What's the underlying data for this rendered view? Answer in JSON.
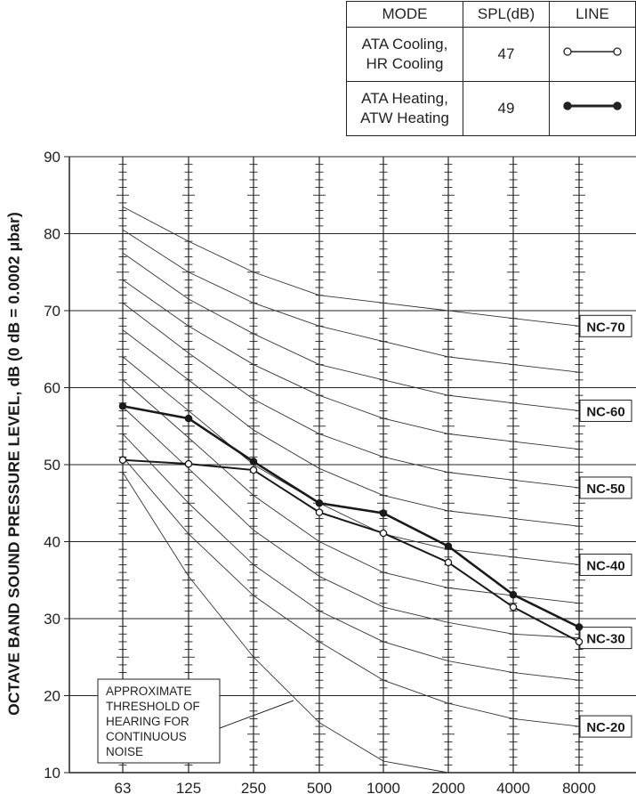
{
  "legend": {
    "headers": [
      "MODE",
      "SPL(dB)",
      "LINE"
    ],
    "rows": [
      {
        "mode_line1": "ATA Cooling,",
        "mode_line2": "HR Cooling",
        "spl": "47",
        "marker": "open-circle"
      },
      {
        "mode_line1": "ATA Heating,",
        "mode_line2": "ATW Heating",
        "spl": "49",
        "marker": "filled-circle"
      }
    ]
  },
  "chart_data": {
    "type": "line",
    "title": "",
    "xlabel": "",
    "ylabel": "OCTAVE BAND SOUND PRESSURE LEVEL, dB (0 dB = 0.0002 μbar)",
    "categories": [
      "63",
      "125",
      "250",
      "500",
      "1000",
      "2000",
      "4000",
      "8000"
    ],
    "y_ticks": [
      10,
      20,
      30,
      40,
      50,
      60,
      70,
      80,
      90
    ],
    "ylim": [
      10,
      90
    ],
    "grid": true,
    "series": [
      {
        "name": "ATA Cooling, HR Cooling",
        "marker": "open",
        "values": [
          50.6,
          50.1,
          49.3,
          43.8,
          41.1,
          37.3,
          31.5,
          27.0
        ]
      },
      {
        "name": "ATA Heating, ATW Heating",
        "marker": "filled",
        "values": [
          57.6,
          56.0,
          50.4,
          45.0,
          43.7,
          39.4,
          33.1,
          28.9
        ]
      }
    ],
    "nc_curves": [
      {
        "label": "NC-70",
        "values": [
          83.5,
          79,
          75,
          72,
          71,
          70,
          69,
          68
        ]
      },
      {
        "label": "",
        "values": [
          80.5,
          75,
          71,
          68,
          66,
          64,
          63,
          62
        ]
      },
      {
        "label": "NC-60",
        "values": [
          77.5,
          71.5,
          67,
          63,
          61,
          59,
          58,
          57
        ]
      },
      {
        "label": "",
        "values": [
          74,
          68,
          63,
          59,
          56,
          54,
          53,
          52
        ]
      },
      {
        "label": "NC-50",
        "values": [
          71,
          64.5,
          58.5,
          54,
          51,
          49,
          48,
          47
        ]
      },
      {
        "label": "",
        "values": [
          67.5,
          61,
          54.5,
          49.5,
          46,
          44,
          43,
          42
        ]
      },
      {
        "label": "NC-40",
        "values": [
          64,
          57,
          50,
          45,
          41,
          39,
          38,
          37
        ]
      },
      {
        "label": "",
        "values": [
          61,
          53.5,
          46,
          40,
          36,
          34,
          33,
          32
        ]
      },
      {
        "label": "NC-30",
        "values": [
          57.5,
          49.5,
          41.5,
          35.5,
          31.5,
          29.5,
          28,
          27.5
        ]
      },
      {
        "label": "",
        "values": [
          54,
          45,
          37,
          31,
          27,
          24.5,
          23,
          22
        ]
      },
      {
        "label": "NC-20",
        "values": [
          51,
          41,
          33,
          27,
          22,
          19,
          17,
          16
        ]
      },
      {
        "label": "",
        "values": [
          49,
          35.5,
          25,
          16.5,
          11.5,
          10,
          null,
          null
        ]
      }
    ],
    "annotation": [
      "APPROXIMATE",
      "THRESHOLD OF",
      "HEARING FOR",
      "CONTINUOUS",
      "NOISE"
    ]
  }
}
